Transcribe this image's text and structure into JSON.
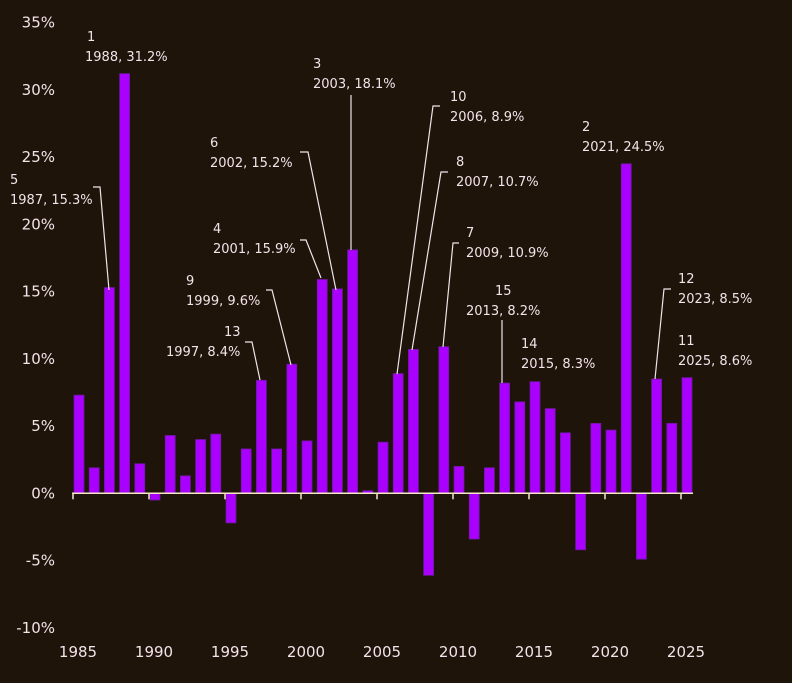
{
  "chart_data": {
    "type": "bar",
    "title": "",
    "xlabel": "",
    "ylabel": "",
    "ylim": [
      -10,
      35
    ],
    "xlim": [
      1985,
      2025
    ],
    "grid": false,
    "y_ticks": [
      {
        "value": 35,
        "label": "35%"
      },
      {
        "value": 30,
        "label": "30%"
      },
      {
        "value": 25,
        "label": "25%"
      },
      {
        "value": 20,
        "label": "20%"
      },
      {
        "value": 15,
        "label": "15%"
      },
      {
        "value": 10,
        "label": "10%"
      },
      {
        "value": 5,
        "label": "5%"
      },
      {
        "value": 0,
        "label": "0%"
      },
      {
        "value": -5,
        "label": "-5%"
      },
      {
        "value": -10,
        "label": "-10%"
      }
    ],
    "x_ticks": [
      {
        "value": 1985,
        "label": "1985"
      },
      {
        "value": 1990,
        "label": "1990"
      },
      {
        "value": 1995,
        "label": "1995"
      },
      {
        "value": 2000,
        "label": "2000"
      },
      {
        "value": 2005,
        "label": "2005"
      },
      {
        "value": 2010,
        "label": "2010"
      },
      {
        "value": 2015,
        "label": "2015"
      },
      {
        "value": 2020,
        "label": "2020"
      },
      {
        "value": 2025,
        "label": "2025"
      }
    ],
    "x": [
      1985,
      1986,
      1987,
      1988,
      1989,
      1990,
      1991,
      1992,
      1993,
      1994,
      1995,
      1996,
      1997,
      1998,
      1999,
      2000,
      2001,
      2002,
      2003,
      2004,
      2005,
      2006,
      2007,
      2008,
      2009,
      2010,
      2011,
      2012,
      2013,
      2014,
      2015,
      2016,
      2017,
      2018,
      2019,
      2020,
      2021,
      2022,
      2023,
      2024,
      2025
    ],
    "values": [
      7.3,
      1.9,
      15.3,
      31.2,
      2.2,
      -0.5,
      4.3,
      1.3,
      4.0,
      4.4,
      -2.2,
      3.3,
      8.4,
      3.3,
      9.6,
      3.9,
      15.9,
      15.2,
      18.1,
      0.2,
      3.8,
      8.9,
      10.7,
      -6.1,
      10.9,
      2.0,
      -3.4,
      1.9,
      8.2,
      6.8,
      8.3,
      6.3,
      4.5,
      -4.2,
      5.2,
      4.7,
      24.5,
      -4.9,
      8.5,
      5.2,
      8.6
    ],
    "annotations": [
      {
        "rank": "1",
        "year": 1988,
        "label": "1988, 31.2%"
      },
      {
        "rank": "2",
        "year": 2021,
        "label": "2021, 24.5%"
      },
      {
        "rank": "3",
        "year": 2003,
        "label": "2003, 18.1%"
      },
      {
        "rank": "4",
        "year": 2001,
        "label": "2001, 15.9%"
      },
      {
        "rank": "5",
        "year": 1987,
        "label": "1987, 15.3%"
      },
      {
        "rank": "6",
        "year": 2002,
        "label": "2002, 15.2%"
      },
      {
        "rank": "7",
        "year": 2009,
        "label": "2009, 10.9%"
      },
      {
        "rank": "8",
        "year": 2007,
        "label": "2007, 10.7%"
      },
      {
        "rank": "9",
        "year": 1999,
        "label": "1999, 9.6%"
      },
      {
        "rank": "10",
        "year": 2006,
        "label": "2006, 8.9%"
      },
      {
        "rank": "11",
        "year": 2025,
        "label": "2025, 8.6%"
      },
      {
        "rank": "12",
        "year": 2023,
        "label": "2023, 8.5%"
      },
      {
        "rank": "13",
        "year": 1997,
        "label": "1997, 8.4%"
      },
      {
        "rank": "14",
        "year": 2015,
        "label": "2015, 8.3%"
      },
      {
        "rank": "15",
        "year": 2013,
        "label": "2013, 8.2%"
      }
    ],
    "colors": {
      "bar": "#a900ff",
      "bar_edge": "#6a1a9a",
      "axis": "#f5e6c8",
      "text": "#f3e3ea",
      "background": "#1e1409"
    }
  }
}
